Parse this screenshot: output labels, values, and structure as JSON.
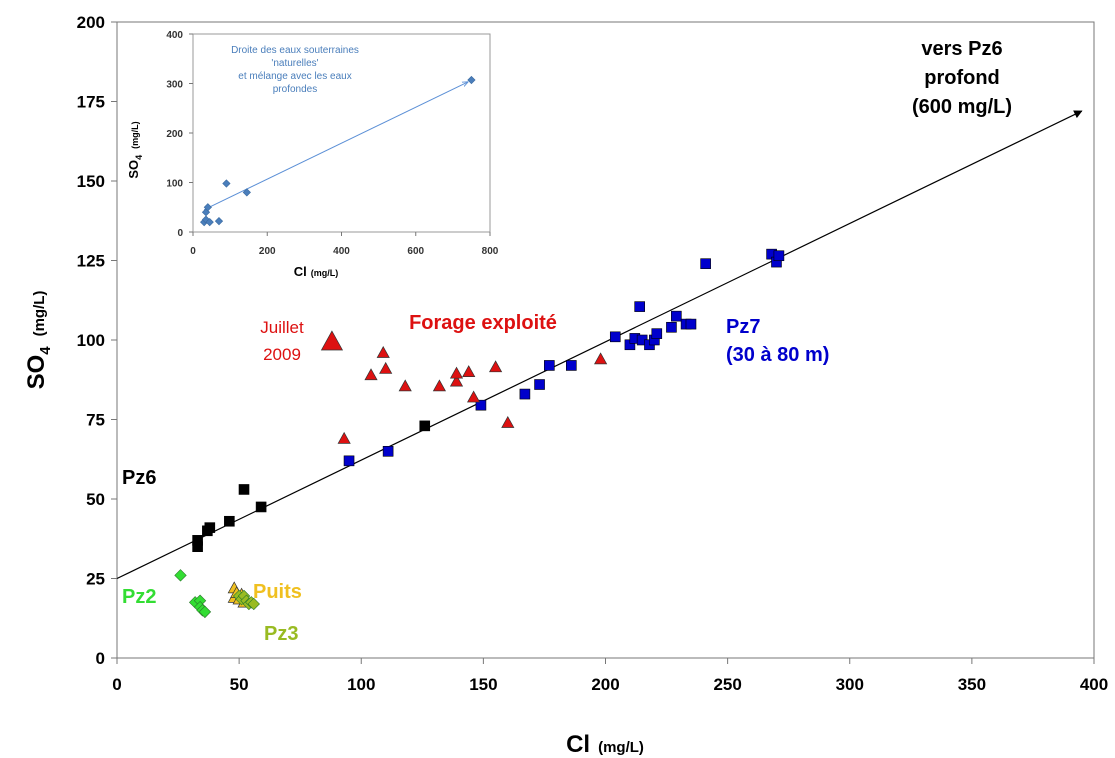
{
  "chart_data": [
    {
      "type": "scatter",
      "xlabel_main": "Cl",
      "xlabel_unit": "(mg/L)",
      "ylabel_main": "SO",
      "ylabel_sub": "4",
      "ylabel_unit": "(mg/L)",
      "xlim": [
        0,
        400
      ],
      "ylim": [
        0,
        200
      ],
      "xticks": [
        "0",
        "50",
        "100",
        "150",
        "200",
        "250",
        "300",
        "350",
        "400"
      ],
      "yticks": [
        "0",
        "25",
        "50",
        "75",
        "100",
        "125",
        "150",
        "175",
        "200"
      ],
      "grid": false,
      "series": [
        {
          "name": "Pz6",
          "marker": "square",
          "color": "#000000",
          "points": [
            [
              33,
              37
            ],
            [
              33,
              35
            ],
            [
              37,
              40
            ],
            [
              38,
              41
            ],
            [
              46,
              43
            ],
            [
              52,
              53
            ],
            [
              59,
              47.5
            ],
            [
              126,
              73
            ]
          ]
        },
        {
          "name": "Pz7 (30 à 80 m)",
          "marker": "square",
          "color": "#0000cc",
          "points": [
            [
              95,
              62
            ],
            [
              111,
              65
            ],
            [
              149,
              79.5
            ],
            [
              167,
              83
            ],
            [
              173,
              86
            ],
            [
              177,
              92
            ],
            [
              186,
              92
            ],
            [
              204,
              101
            ],
            [
              210,
              98.5
            ],
            [
              212,
              100.5
            ],
            [
              214,
              110.5
            ],
            [
              215,
              100
            ],
            [
              218,
              98.5
            ],
            [
              220,
              100
            ],
            [
              221,
              102
            ],
            [
              227,
              104
            ],
            [
              229,
              107.5
            ],
            [
              233,
              105
            ],
            [
              235,
              105
            ],
            [
              241,
              124
            ],
            [
              268,
              127
            ],
            [
              270,
              124.5
            ],
            [
              271,
              126.5
            ]
          ]
        },
        {
          "name": "Forage exploité",
          "marker": "triangle",
          "color": "#dd1111",
          "points": [
            [
              93,
              69
            ],
            [
              104,
              89
            ],
            [
              109,
              96
            ],
            [
              110,
              91
            ],
            [
              118,
              85.5
            ],
            [
              132,
              85.5
            ],
            [
              139,
              87
            ],
            [
              139,
              89.5
            ],
            [
              144,
              90
            ],
            [
              146,
              82
            ],
            [
              155,
              91.5
            ],
            [
              160,
              74
            ],
            [
              198,
              94
            ]
          ]
        },
        {
          "name": "Juillet 2009",
          "marker": "triangle-large",
          "color": "#dd1111",
          "points": [
            [
              88,
              99.5
            ]
          ]
        },
        {
          "name": "Pz2",
          "marker": "diamond",
          "color": "#33dd33",
          "points": [
            [
              26,
              26
            ],
            [
              32,
              17.5
            ],
            [
              34,
              18
            ],
            [
              34,
              16
            ],
            [
              35,
              15
            ],
            [
              36,
              14.5
            ]
          ]
        },
        {
          "name": "Puits",
          "marker": "triangle",
          "color": "#f0c020",
          "points": [
            [
              48,
              22
            ],
            [
              48,
              19
            ],
            [
              49,
              20.5
            ],
            [
              50,
              18.5
            ],
            [
              51,
              20
            ],
            [
              52,
              17.5
            ]
          ]
        },
        {
          "name": "Pz3",
          "marker": "diamond",
          "color": "#99bb22",
          "points": [
            [
              50,
              19.5
            ],
            [
              51,
              18.5
            ],
            [
              52,
              19.5
            ],
            [
              53,
              18
            ],
            [
              54,
              17
            ],
            [
              55,
              17.5
            ],
            [
              56,
              17
            ]
          ]
        }
      ],
      "trendline": {
        "points": [
          [
            0,
            25
          ],
          [
            395,
            172
          ]
        ],
        "color": "#000000"
      },
      "annotations": [
        {
          "text": "vers Pz6",
          "color": "#000000"
        },
        {
          "text": "profond",
          "color": "#000000"
        },
        {
          "text": "(600 mg/L)",
          "color": "#000000"
        },
        {
          "text": "Forage exploité",
          "color": "#dd1111"
        },
        {
          "text": "Juillet",
          "color": "#dd1111"
        },
        {
          "text": "2009",
          "color": "#dd1111"
        },
        {
          "text": "Pz7",
          "color": "#0000cc"
        },
        {
          "text": "(30 à 80 m)",
          "color": "#0000cc"
        },
        {
          "text": "Pz6",
          "color": "#000000"
        },
        {
          "text": "Pz2",
          "color": "#33dd33"
        },
        {
          "text": "Puits",
          "color": "#f0c020"
        },
        {
          "text": "Pz3",
          "color": "#99bb22"
        }
      ]
    },
    {
      "type": "scatter",
      "inset": true,
      "xlabel_main": "Cl",
      "xlabel_unit": "(mg/L)",
      "ylabel_main": "SO",
      "ylabel_sub": "4",
      "ylabel_unit": "(mg/L)",
      "xlim": [
        0,
        800
      ],
      "ylim": [
        0,
        400
      ],
      "xticks": [
        "0",
        "200",
        "400",
        "600",
        "800"
      ],
      "yticks": [
        "0",
        "100",
        "200",
        "300",
        "400"
      ],
      "series": [
        {
          "name": "inset points",
          "marker": "diamond",
          "color": "#4a7ebb",
          "points": [
            [
              30,
              20
            ],
            [
              35,
              25
            ],
            [
              35,
              40
            ],
            [
              40,
              50
            ],
            [
              45,
              20
            ],
            [
              70,
              22
            ],
            [
              90,
              98
            ],
            [
              145,
              80
            ],
            [
              750,
              307
            ]
          ]
        }
      ],
      "trendline": {
        "points": [
          [
            30,
            45
          ],
          [
            740,
            303
          ]
        ],
        "color": "#5b8fd6"
      },
      "annotation_lines": [
        "Droite des eaux souterraines",
        "'naturelles'",
        "et mélange avec les eaux",
        "profondes"
      ]
    }
  ]
}
